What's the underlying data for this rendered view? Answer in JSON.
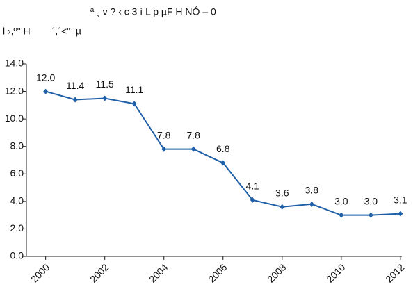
{
  "chart_data": {
    "type": "line",
    "title": "ª ¸ v ?  ‹ c 3 ì L p µF H NÓ – 0",
    "subtitle": "l ›,º\" H        ´,´<\"  µ",
    "x": [
      2000,
      2001,
      2002,
      2003,
      2004,
      2005,
      2006,
      2007,
      2008,
      2009,
      2010,
      2011,
      2012
    ],
    "values": [
      12.0,
      11.4,
      11.5,
      11.1,
      7.8,
      7.8,
      6.8,
      4.1,
      3.6,
      3.8,
      3.0,
      3.0,
      3.1
    ],
    "value_labels": [
      "12.0",
      "11.4",
      "11.5",
      "11.1",
      "7.8",
      "7.8",
      "6.8",
      "4.1",
      "3.6",
      "3.8",
      "3.0",
      "3.0",
      "3.1"
    ],
    "color": "#1f5fa8",
    "xlim": [
      1999.35,
      2012.05
    ],
    "xticks": [
      2000,
      2002,
      2004,
      2006,
      2008,
      2010,
      2012
    ],
    "ylim": [
      0,
      14
    ],
    "yticks": [
      {
        "value": 0,
        "label": "0.0"
      },
      {
        "value": 2,
        "label": "2.0"
      },
      {
        "value": 4,
        "label": "4.0"
      },
      {
        "value": 6,
        "label": "6.0"
      },
      {
        "value": 8,
        "label": "8.0"
      },
      {
        "value": 10,
        "label": "10.0"
      },
      {
        "value": 12,
        "label": "12.0"
      },
      {
        "value": 14,
        "label": "14.0"
      }
    ]
  }
}
